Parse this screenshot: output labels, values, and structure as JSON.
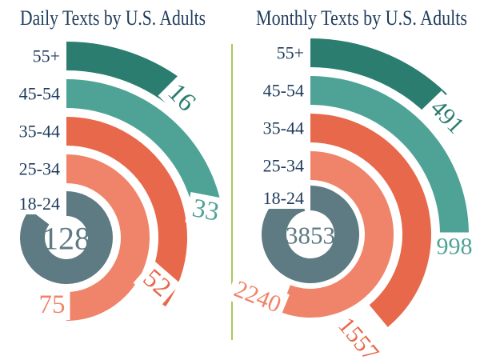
{
  "background": "#ffffff",
  "divider": {
    "color": "#abc859"
  },
  "title_color": "#1e3b5c",
  "age_label_color": "#1e3b5c",
  "chart_data": [
    {
      "type": "radial-bar",
      "title": "Daily Texts by U.S. Adults",
      "categories": [
        "55+",
        "45-54",
        "35-44",
        "25-34",
        "18-24"
      ],
      "values": [
        16,
        33,
        52,
        75,
        128
      ],
      "colors": [
        "#2b7d70",
        "#4ea396",
        "#e7684a",
        "#f0846a",
        "#5e7a82"
      ],
      "full_circle_value": 150,
      "start_angle_deg": 0,
      "direction": "clockwise",
      "legend_position": "category labels left of arc starts, value labels at arc ends",
      "grid": "off"
    },
    {
      "type": "radial-bar",
      "title": "Monthly Texts by U.S. Adults",
      "categories": [
        "55+",
        "45-54",
        "35-44",
        "25-34",
        "18-24"
      ],
      "values": [
        491,
        998,
        1557,
        2240,
        3853
      ],
      "colors": [
        "#2b7d70",
        "#4ea396",
        "#e7684a",
        "#f0846a",
        "#5e7a82"
      ],
      "full_circle_value": 4000,
      "start_angle_deg": 0,
      "direction": "clockwise",
      "legend_position": "category labels left of arc starts, value labels at arc ends",
      "grid": "off"
    }
  ]
}
